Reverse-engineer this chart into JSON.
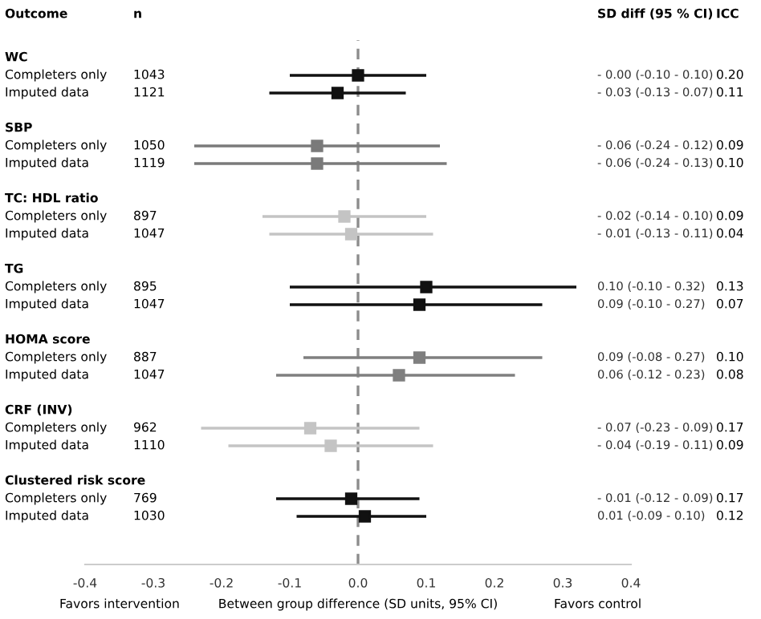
{
  "chart_data": {
    "type": "scatter",
    "orientation": "horizontal",
    "marker": "square",
    "xlabel": "Between group difference (SD units, 95% CI)",
    "categories": [
      "WC",
      "Completers only",
      "Imputed data",
      null,
      "SBP",
      "Completers only",
      "Imputed data",
      null,
      "TC: HDL ratio",
      "Completers only",
      "Imputed data",
      null,
      "TG",
      "Completers only",
      "Imputed data",
      null,
      "HOMA score",
      "Completers only",
      "Imputed data",
      null,
      "CRF (INV)",
      "Completers only",
      "Imputed data",
      null,
      "Clustered risk score",
      "Completers only",
      "Imputed data"
    ],
    "values": [
      null,
      -0.0,
      -0.03,
      null,
      null,
      -0.06,
      -0.06,
      null,
      null,
      -0.02,
      -0.01,
      null,
      null,
      0.1,
      0.09,
      null,
      null,
      0.09,
      0.06,
      null,
      null,
      -0.07,
      -0.04,
      null,
      null,
      -0.01,
      0.01
    ],
    "errors": [
      null,
      [
        -0.1,
        0.1
      ],
      [
        -0.13,
        0.07
      ],
      null,
      null,
      [
        -0.24,
        0.12
      ],
      [
        -0.24,
        0.13
      ],
      null,
      null,
      [
        -0.14,
        0.1
      ],
      [
        -0.13,
        0.11
      ],
      null,
      null,
      [
        -0.1,
        0.32
      ],
      [
        -0.1,
        0.27
      ],
      null,
      null,
      [
        -0.08,
        0.27
      ],
      [
        -0.12,
        0.23
      ],
      null,
      null,
      [
        -0.23,
        0.09
      ],
      [
        -0.19,
        0.11
      ],
      null,
      null,
      [
        -0.12,
        0.09
      ],
      [
        -0.09,
        0.1
      ]
    ],
    "colors": [
      null,
      "#111111",
      "#111111",
      null,
      null,
      "#7a7a7a",
      "#7a7a7a",
      null,
      null,
      "#c4c4c4",
      "#c4c4c4",
      null,
      null,
      "#111111",
      "#111111",
      null,
      null,
      "#7f7f7f",
      "#7f7f7f",
      null,
      null,
      "#c4c4c4",
      "#c4c4c4",
      null,
      null,
      "#111111",
      "#111111"
    ],
    "xlim": [
      -0.4,
      0.4
    ],
    "xticks": [
      -0.4,
      -0.3,
      -0.2,
      -0.1,
      {
        "value": 0,
        "label": "0.0"
      },
      0.1,
      0.2,
      0.3,
      0.4
    ],
    "ref_lines": [
      {
        "axis": "x",
        "value": 0,
        "color": "#8c8c8c",
        "line_style": "dashed"
      }
    ],
    "annotations": [
      "Outcome",
      "n",
      "SD diff (95 % CI)",
      "ICC",
      "Favors intervention",
      "Favors control",
      "1043",
      "1121",
      "1050",
      "1119",
      "897",
      "1047",
      "895",
      "1047",
      "887",
      "1047",
      "962",
      "1110",
      "769",
      "1030",
      "0.20",
      "0.11",
      "0.09",
      "0.10",
      "0.09",
      "0.04",
      "0.13",
      "0.07",
      "0.10",
      "0.08",
      "0.17",
      "0.09",
      "0.17",
      "0.12",
      "- 0.00 (-0.10 - 0.10)",
      "- 0.03 (-0.13 - 0.07)",
      "- 0.06 (-0.24 - 0.12)",
      "- 0.06 (-0.24 - 0.13)",
      "- 0.02 (-0.14 - 0.10)",
      "- 0.01 (-0.13 - 0.11)",
      "0.10 (-0.10 - 0.32)",
      "0.09 (-0.10 - 0.27)",
      "0.09 (-0.08 - 0.27)",
      "0.06 (-0.12 - 0.23)",
      "- 0.07 (-0.23 - 0.09)",
      "- 0.04 (-0.19 - 0.11)",
      "- 0.01 (-0.12 - 0.09)",
      "0.01 (-0.09 - 0.10)"
    ]
  }
}
